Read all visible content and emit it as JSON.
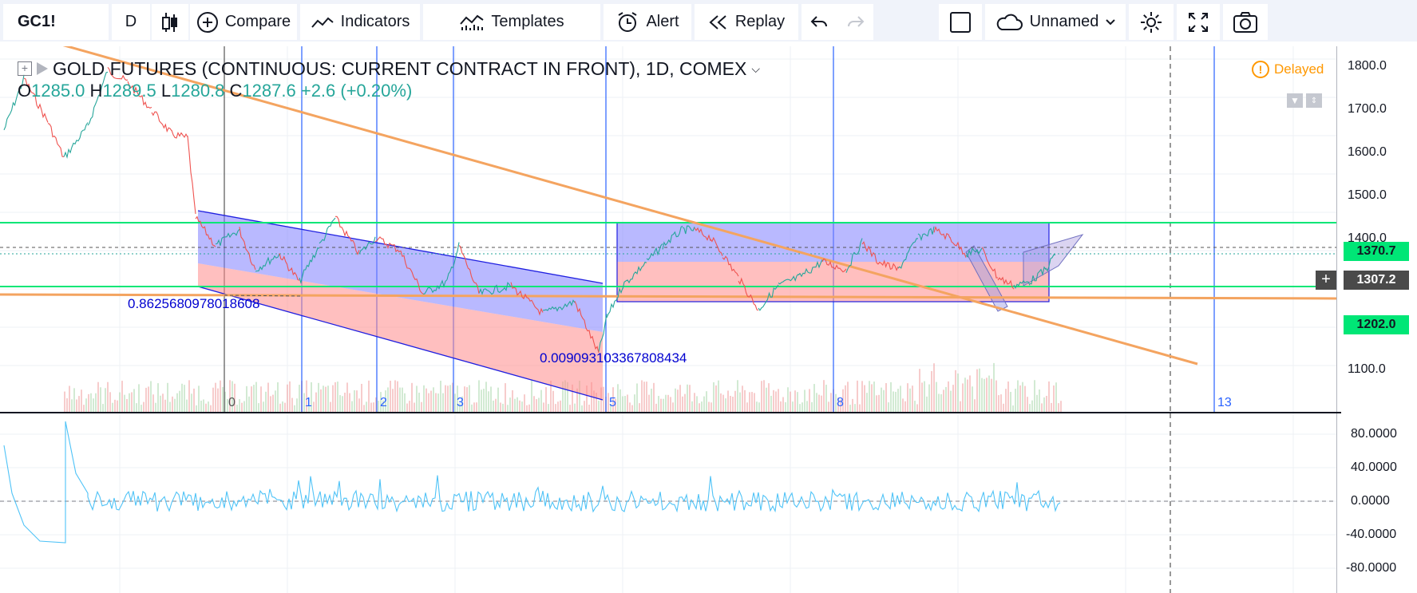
{
  "toolbar": {
    "symbol": "GC1!",
    "interval": "D",
    "compare_label": "Compare",
    "indicators_label": "Indicators",
    "templates_label": "Templates",
    "alert_label": "Alert",
    "replay_label": "Replay",
    "layout_name": "Unnamed"
  },
  "legend": {
    "title": "GOLD FUTURES (CONTINUOUS: CURRENT CONTRACT IN FRONT), 1D, COMEX",
    "open": "1285.0",
    "high": "1289.5",
    "low": "1280.8",
    "close": "1287.6",
    "change": "+2.6 (+0.20%)"
  },
  "status": {
    "delayed_label": "Delayed"
  },
  "price_axis": {
    "ticks": [
      "1800.0",
      "1700.0",
      "1600.0",
      "1500.0",
      "1400.0",
      "1100.0"
    ],
    "tags": [
      {
        "value": "1370.7",
        "color": "#00e676"
      },
      {
        "value": "1307.2",
        "color": "#4a4a4a"
      },
      {
        "value": "1202.0",
        "color": "#00e676"
      }
    ]
  },
  "osc_axis": {
    "ticks": [
      "80.0000",
      "40.0000",
      "0.0000",
      "-40.0000",
      "-80.0000"
    ]
  },
  "fib_time_labels": [
    "0",
    "1",
    "2",
    "3",
    "5",
    "8",
    "13"
  ],
  "annotations": {
    "channel_label_1": "0.8625680978018608",
    "channel_label_2": "0.00909310336780843​4"
  },
  "colors": {
    "up": "#26a69a",
    "down": "#ef5350",
    "fib_line": "#2962ff",
    "trend_line": "#f4a460",
    "level": "#00e676",
    "channel_blue": "#7f7fff",
    "channel_red": "#ff8a8a",
    "osc": "#4fc3f7"
  }
}
